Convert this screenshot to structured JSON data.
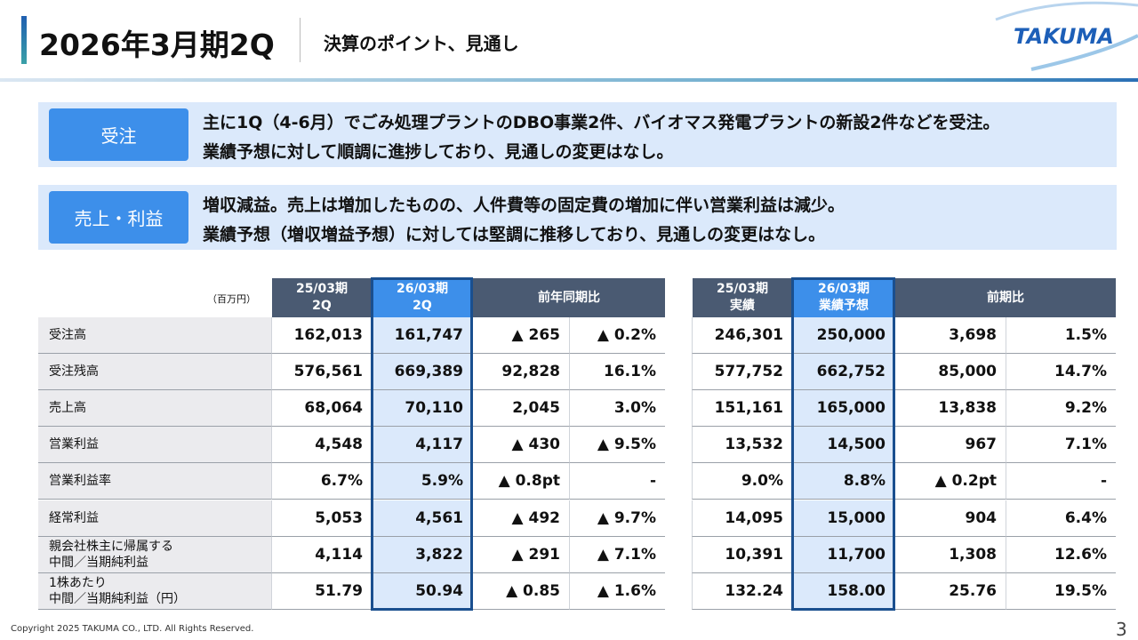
{
  "header": {
    "title": "2026年3月期2Q",
    "subtitle": "決算のポイント、見通し",
    "logo": "TAKUMA"
  },
  "points": [
    {
      "label": "受注",
      "lines": [
        "主に1Q（4-6月）でごみ処理プラントのDBO事業2件、バイオマス発電プラントの新設2件などを受注。",
        "業績予想に対して順調に進捗しており、見通しの変更はなし。"
      ]
    },
    {
      "label": "売上・利益",
      "lines": [
        "増収減益。売上は増加したものの、人件費等の固定費の増加に伴い営業利益は減少。",
        "業績予想（増収増益予想）に対しては堅調に推移しており、見通しの変更はなし。"
      ]
    }
  ],
  "table": {
    "unit": "（百万円）",
    "left_header": [
      [
        "25/03期",
        "2Q"
      ],
      [
        "26/03期",
        "2Q"
      ],
      [
        "前年同期比"
      ]
    ],
    "right_header": [
      [
        "25/03期",
        "実績"
      ],
      [
        "26/03期",
        "業績予想"
      ],
      [
        "前期比"
      ]
    ],
    "rows": [
      {
        "label": [
          "受注高"
        ],
        "left": [
          "162,013",
          "161,747",
          "▲ 265",
          "▲ 0.2%"
        ],
        "right": [
          "246,301",
          "250,000",
          "3,698",
          "1.5%"
        ]
      },
      {
        "label": [
          "受注残高"
        ],
        "left": [
          "576,561",
          "669,389",
          "92,828",
          "16.1%"
        ],
        "right": [
          "577,752",
          "662,752",
          "85,000",
          "14.7%"
        ]
      },
      {
        "label": [
          "売上高"
        ],
        "left": [
          "68,064",
          "70,110",
          "2,045",
          "3.0%"
        ],
        "right": [
          "151,161",
          "165,000",
          "13,838",
          "9.2%"
        ]
      },
      {
        "label": [
          "営業利益"
        ],
        "left": [
          "4,548",
          "4,117",
          "▲ 430",
          "▲ 9.5%"
        ],
        "right": [
          "13,532",
          "14,500",
          "967",
          "7.1%"
        ]
      },
      {
        "label": [
          "営業利益率"
        ],
        "left": [
          "6.7%",
          "5.9%",
          "▲ 0.8pt",
          "-"
        ],
        "right": [
          "9.0%",
          "8.8%",
          "▲ 0.2pt",
          "-"
        ]
      },
      {
        "label": [
          "経常利益"
        ],
        "left": [
          "5,053",
          "4,561",
          "▲ 492",
          "▲ 9.7%"
        ],
        "right": [
          "14,095",
          "15,000",
          "904",
          "6.4%"
        ]
      },
      {
        "label": [
          "親会社株主に帰属する",
          "中間／当期純利益"
        ],
        "left": [
          "4,114",
          "3,822",
          "▲ 291",
          "▲ 7.1%"
        ],
        "right": [
          "10,391",
          "11,700",
          "1,308",
          "12.6%"
        ]
      },
      {
        "label": [
          "1株あたり",
          "中間／当期純利益（円）"
        ],
        "left": [
          "51.79",
          "50.94",
          "▲ 0.85",
          "▲ 1.6%"
        ],
        "right": [
          "132.24",
          "158.00",
          "25.76",
          "19.5%"
        ]
      }
    ]
  },
  "footer": {
    "copyright": "Copyright  2025 TAKUMA CO., LTD.  All Rights Reserved.",
    "page_number": "3"
  }
}
